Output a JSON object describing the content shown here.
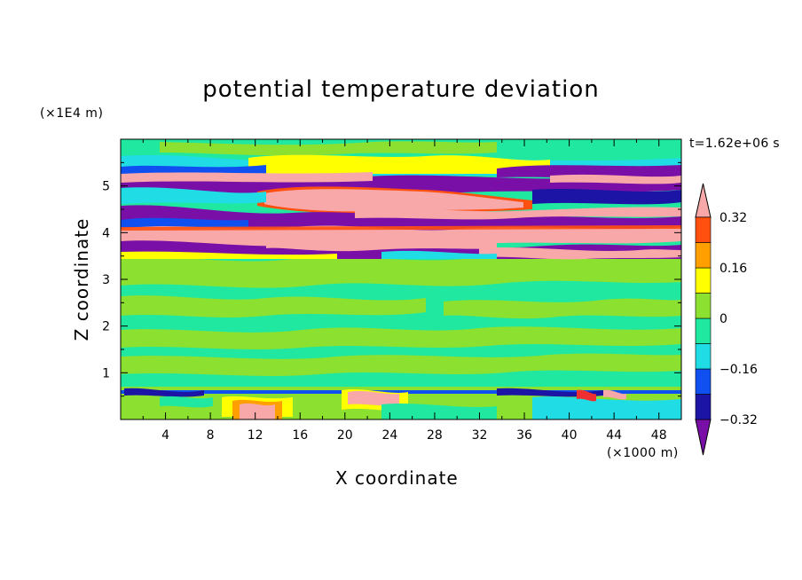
{
  "chart_data": {
    "type": "heatmap",
    "title": "potential temperature deviation",
    "xlabel": "X coordinate",
    "ylabel": "Z coordinate",
    "x_unit_label": "(×1000 m)",
    "y_unit_label": "(×1E4 m)",
    "time_label": "t=1.62e+06 s",
    "xlim": [
      0,
      50
    ],
    "ylim": [
      0,
      6
    ],
    "x_ticks": [
      "4",
      "8",
      "12",
      "16",
      "20",
      "24",
      "28",
      "32",
      "36",
      "40",
      "44",
      "48"
    ],
    "y_ticks": [
      "1",
      "2",
      "3",
      "4",
      "5"
    ],
    "colorbar": {
      "labels": [
        "0.32",
        "0.16",
        "0",
        "−0.16",
        "−0.32"
      ],
      "label_values": [
        0.32,
        0.16,
        0,
        -0.16,
        -0.32
      ],
      "levels": [
        -0.4,
        -0.32,
        -0.24,
        -0.16,
        -0.08,
        0,
        0.08,
        0.16,
        0.24,
        0.32,
        0.4
      ],
      "colors": [
        "#7a0fa8",
        "#1c14a4",
        "#1050f0",
        "#20dce4",
        "#20e8a0",
        "#8ce030",
        "#ffff00",
        "#ffa000",
        "#ff5010",
        "#f03030",
        "#f8a8a8"
      ]
    },
    "field_bands": [
      {
        "z_range": [
          0,
          0.6
        ],
        "description_value": "mixed, mostly -0.08 to 0.08 with warm cells near x=12-14 and x=20-23"
      },
      {
        "z_range": [
          0.6,
          3.5
        ],
        "values": [
          0,
          0.08
        ]
      },
      {
        "z_range": [
          3.5,
          5.5
        ],
        "values": [
          -0.4,
          0.4
        ]
      },
      {
        "z_range": [
          5.5,
          6.0
        ],
        "values": [
          0,
          0.16
        ]
      }
    ]
  }
}
